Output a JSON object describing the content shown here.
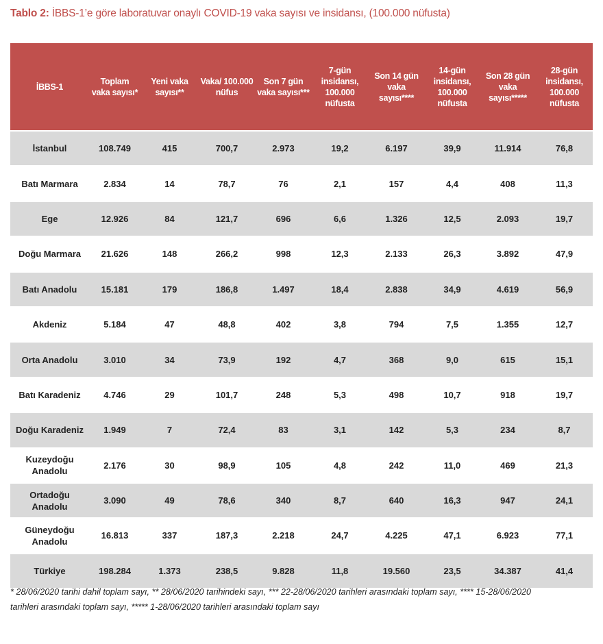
{
  "title_bold": "Tablo 2:",
  "title_rest": " İBBS-1’e göre laboratuvar onaylı COVID-19 vaka sayısı ve insidansı, (100.000 nüfusta)",
  "headers": [
    "İBBS-1",
    "Toplam vaka sayısı*",
    "Yeni vaka sayısı**",
    "Vaka/ 100.000 nüfus",
    "Son 7 gün vaka sayısı***",
    "7-gün insidansı, 100.000 nüfusta",
    "Son 14 gün vaka sayısı****",
    "14-gün insidansı, 100.000 nüfusta",
    "Son 28 gün vaka sayısı*****",
    "28-gün insidansı, 100.000 nüfusta"
  ],
  "rows": [
    [
      "İstanbul",
      "108.749",
      "415",
      "700,7",
      "2.973",
      "19,2",
      "6.197",
      "39,9",
      "11.914",
      "76,8"
    ],
    [
      "Batı Marmara",
      "2.834",
      "14",
      "78,7",
      "76",
      "2,1",
      "157",
      "4,4",
      "408",
      "11,3"
    ],
    [
      "Ege",
      "12.926",
      "84",
      "121,7",
      "696",
      "6,6",
      "1.326",
      "12,5",
      "2.093",
      "19,7"
    ],
    [
      "Doğu Marmara",
      "21.626",
      "148",
      "266,2",
      "998",
      "12,3",
      "2.133",
      "26,3",
      "3.892",
      "47,9"
    ],
    [
      "Batı Anadolu",
      "15.181",
      "179",
      "186,8",
      "1.497",
      "18,4",
      "2.838",
      "34,9",
      "4.619",
      "56,9"
    ],
    [
      "Akdeniz",
      "5.184",
      "47",
      "48,8",
      "402",
      "3,8",
      "794",
      "7,5",
      "1.355",
      "12,7"
    ],
    [
      "Orta Anadolu",
      "3.010",
      "34",
      "73,9",
      "192",
      "4,7",
      "368",
      "9,0",
      "615",
      "15,1"
    ],
    [
      "Batı Karadeniz",
      "4.746",
      "29",
      "101,7",
      "248",
      "5,3",
      "498",
      "10,7",
      "918",
      "19,7"
    ],
    [
      "Doğu Karadeniz",
      "1.949",
      "7",
      "72,4",
      "83",
      "3,1",
      "142",
      "5,3",
      "234",
      "8,7"
    ],
    [
      "Kuzeydoğu Anadolu",
      "2.176",
      "30",
      "98,9",
      "105",
      "4,8",
      "242",
      "11,0",
      "469",
      "21,3"
    ],
    [
      "Ortadoğu Anadolu",
      "3.090",
      "49",
      "78,6",
      "340",
      "8,7",
      "640",
      "16,3",
      "947",
      "24,1"
    ],
    [
      "Güneydoğu Anadolu",
      "16.813",
      "337",
      "187,3",
      "2.218",
      "24,7",
      "4.225",
      "47,1",
      "6.923",
      "77,1"
    ],
    [
      "Türkiye",
      "198.284",
      "1.373",
      "238,5",
      "9.828",
      "11,8",
      "19.560",
      "23,5",
      "34.387",
      "41,4"
    ]
  ],
  "footnote": "* 28/06/2020 tarihi dahil toplam sayı, ** 28/06/2020 tarihindeki sayı, *** 22-28/06/2020 tarihleri arasındaki toplam sayı, **** 15-28/06/2020 tarihleri arasındaki toplam sayı, ***** 1-28/06/2020 tarihleri arasındaki toplam sayı",
  "colors": {
    "header": "#c0504d",
    "stripe": "#d9d9d9"
  }
}
